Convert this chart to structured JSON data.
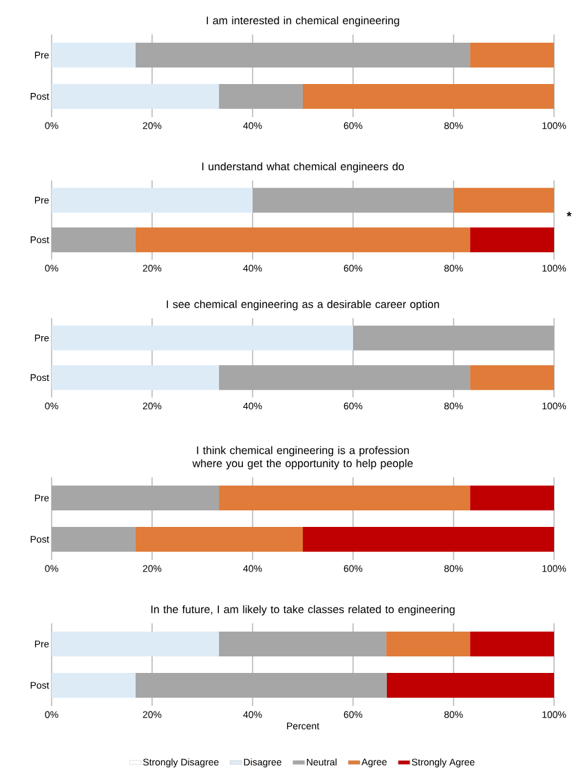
{
  "chart_data": [
    {
      "type": "bar",
      "orientation": "horizontal",
      "stacked": true,
      "title": "I am interested in chemical engineering",
      "categories": [
        "Pre",
        "Post"
      ],
      "series": [
        {
          "color": "#ffffff",
          "values": [
            0,
            0
          ]
        },
        {
          "color": "#ddebf7",
          "values": [
            16.7,
            33.3
          ]
        },
        {
          "color": "#a6a6a6",
          "values": [
            66.6,
            16.7
          ]
        },
        {
          "color": "#e07b39",
          "values": [
            16.7,
            50
          ]
        },
        {
          "color": "#c00000",
          "values": [
            0,
            0
          ]
        }
      ],
      "xlim": [
        0,
        100
      ],
      "xticks": [
        {
          "value": 0,
          "label": "0%"
        },
        {
          "value": 20,
          "label": "20%"
        },
        {
          "value": 40,
          "label": "40%"
        },
        {
          "value": 60,
          "label": "60%"
        },
        {
          "value": 80,
          "label": "80%"
        },
        {
          "value": 100,
          "label": "100%"
        }
      ],
      "grid": "x",
      "legend": false
    },
    {
      "type": "bar",
      "orientation": "horizontal",
      "stacked": true,
      "title": "I understand what chemical engineers do",
      "categories": [
        "Pre",
        "Post"
      ],
      "series": [
        {
          "color": "#ffffff",
          "values": [
            0,
            0
          ]
        },
        {
          "color": "#ddebf7",
          "values": [
            40,
            0
          ]
        },
        {
          "color": "#a6a6a6",
          "values": [
            40,
            16.7
          ]
        },
        {
          "color": "#e07b39",
          "values": [
            20,
            66.6
          ]
        },
        {
          "color": "#c00000",
          "values": [
            0,
            16.7
          ]
        }
      ],
      "xlim": [
        0,
        100
      ],
      "xticks": [
        {
          "value": 0,
          "label": "0%"
        },
        {
          "value": 20,
          "label": "20%"
        },
        {
          "value": 40,
          "label": "40%"
        },
        {
          "value": 60,
          "label": "60%"
        },
        {
          "value": 80,
          "label": "80%"
        },
        {
          "value": 100,
          "label": "100%"
        }
      ],
      "grid": "x",
      "legend": false,
      "annotations": [
        "*"
      ]
    },
    {
      "type": "bar",
      "orientation": "horizontal",
      "stacked": true,
      "title": "I see chemical engineering as a desirable career option",
      "categories": [
        "Pre",
        "Post"
      ],
      "series": [
        {
          "color": "#ffffff",
          "values": [
            0,
            0
          ]
        },
        {
          "color": "#ddebf7",
          "values": [
            60,
            33.3
          ]
        },
        {
          "color": "#a6a6a6",
          "values": [
            40,
            50
          ]
        },
        {
          "color": "#e07b39",
          "values": [
            0,
            16.7
          ]
        },
        {
          "color": "#c00000",
          "values": [
            0,
            0
          ]
        }
      ],
      "xlim": [
        0,
        100
      ],
      "xticks": [
        {
          "value": 0,
          "label": "0%"
        },
        {
          "value": 20,
          "label": "20%"
        },
        {
          "value": 40,
          "label": "40%"
        },
        {
          "value": 60,
          "label": "60%"
        },
        {
          "value": 80,
          "label": "80%"
        },
        {
          "value": 100,
          "label": "100%"
        }
      ],
      "grid": "x",
      "legend": false
    },
    {
      "type": "bar",
      "orientation": "horizontal",
      "stacked": true,
      "title": "I think chemical engineering is a profession where you get the opportunity to help people",
      "categories": [
        "Pre",
        "Post"
      ],
      "series": [
        {
          "color": "#ffffff",
          "values": [
            0,
            0
          ]
        },
        {
          "color": "#ddebf7",
          "values": [
            0,
            0
          ]
        },
        {
          "color": "#a6a6a6",
          "values": [
            33.3,
            16.7
          ]
        },
        {
          "color": "#e07b39",
          "values": [
            50,
            33.3
          ]
        },
        {
          "color": "#c00000",
          "values": [
            16.7,
            50
          ]
        }
      ],
      "xlim": [
        0,
        100
      ],
      "xticks": [
        {
          "value": 0,
          "label": "0%"
        },
        {
          "value": 20,
          "label": "20%"
        },
        {
          "value": 40,
          "label": "40%"
        },
        {
          "value": 60,
          "label": "60%"
        },
        {
          "value": 80,
          "label": "80%"
        },
        {
          "value": 100,
          "label": "100%"
        }
      ],
      "grid": "x",
      "legend": false
    },
    {
      "type": "bar",
      "orientation": "horizontal",
      "stacked": true,
      "title": "In the future, I am  likely to take classes related to engineering",
      "xlabel": "Percent",
      "categories": [
        "Pre",
        "Post"
      ],
      "series": [
        {
          "name": "Strongly Disagree",
          "color": "#ffffff",
          "values": [
            0,
            0
          ]
        },
        {
          "name": "Disagree",
          "color": "#ddebf7",
          "values": [
            33.3,
            16.7
          ]
        },
        {
          "name": "Neutral",
          "color": "#a6a6a6",
          "values": [
            33.3,
            50
          ]
        },
        {
          "name": "Agree",
          "color": "#e07b39",
          "values": [
            16.7,
            0
          ]
        },
        {
          "name": "Strongly Agree",
          "color": "#c00000",
          "values": [
            16.7,
            33.3
          ]
        }
      ],
      "xlim": [
        0,
        100
      ],
      "xticks": [
        {
          "value": 0,
          "label": "0%"
        },
        {
          "value": 20,
          "label": "20%"
        },
        {
          "value": 40,
          "label": "40%"
        },
        {
          "value": 60,
          "label": "60%"
        },
        {
          "value": 80,
          "label": "80%"
        },
        {
          "value": 100,
          "label": "100%"
        }
      ],
      "grid": "x",
      "legend": "bottom"
    }
  ]
}
